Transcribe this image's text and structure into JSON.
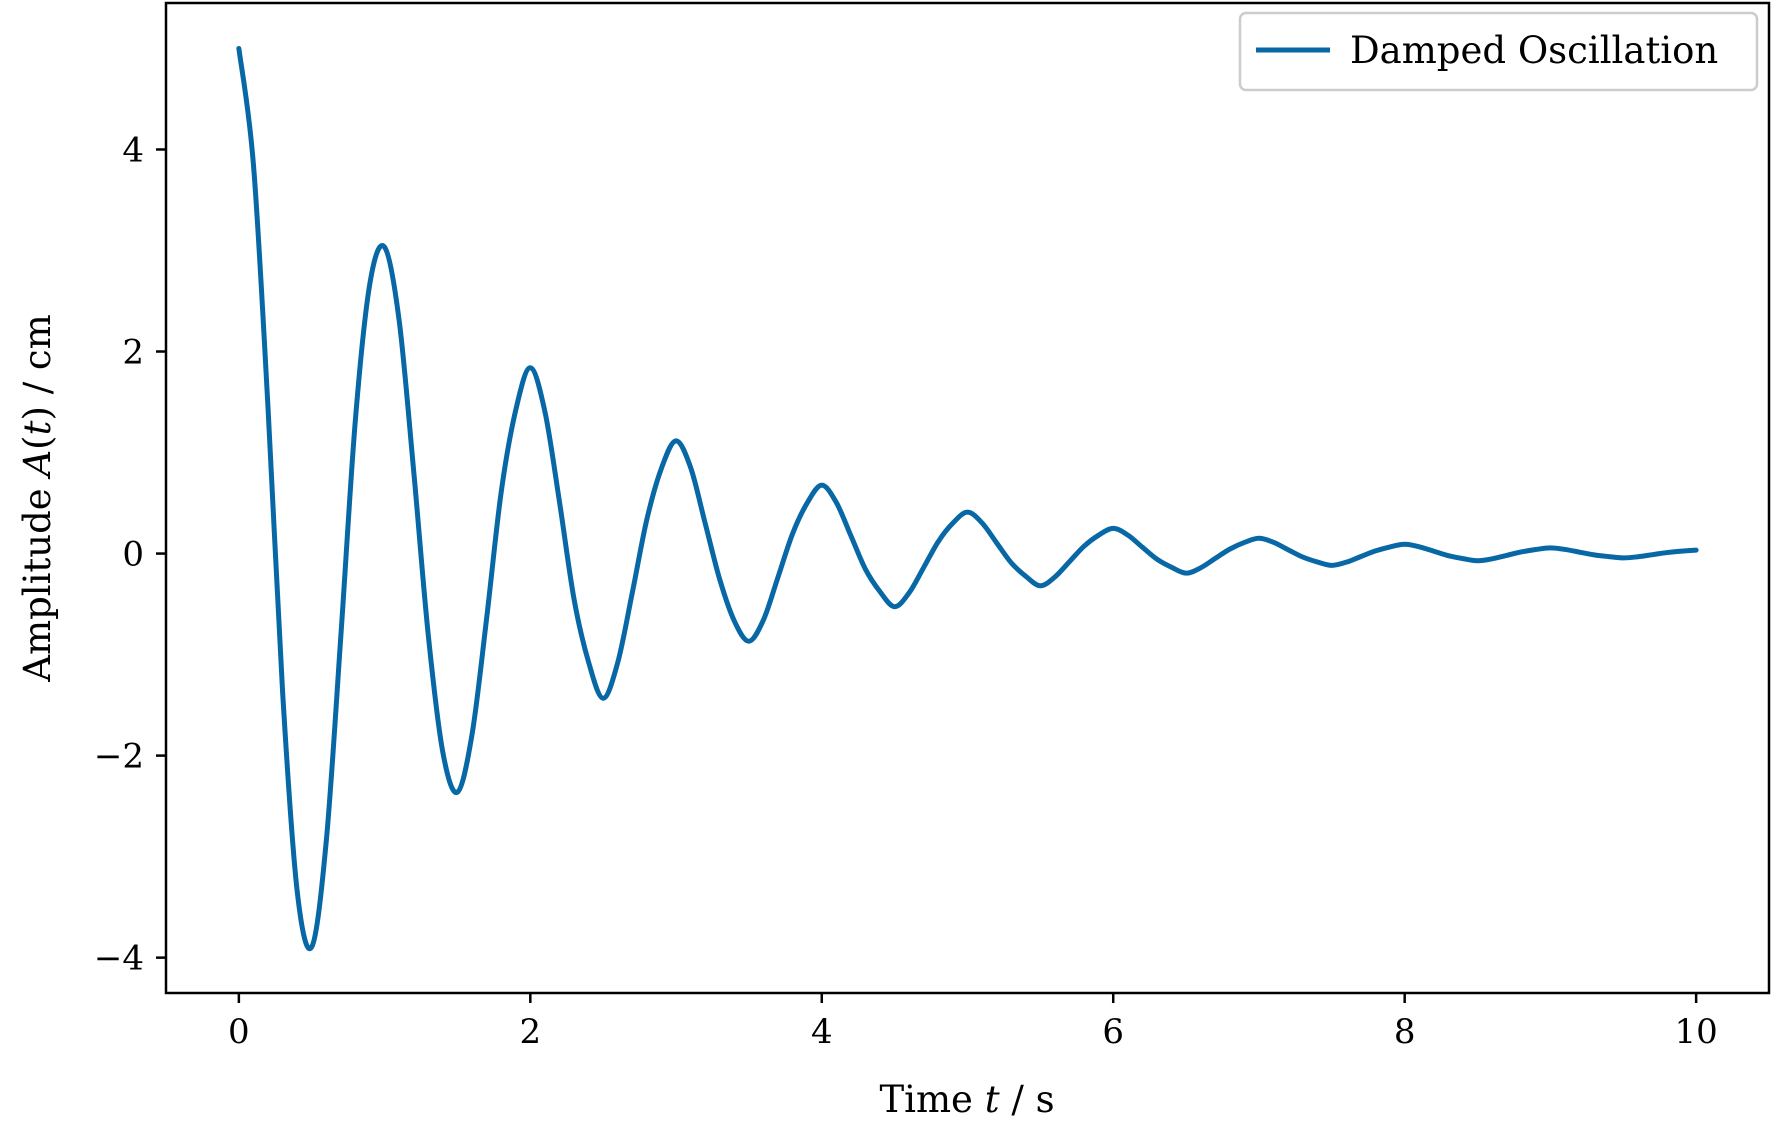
{
  "chart_data": {
    "type": "line",
    "title": "",
    "xlabel": {
      "prefix": "Time ",
      "var": "t",
      "suffix": " / s"
    },
    "ylabel": {
      "prefix": "Amplitude ",
      "var": "A",
      "paren_open": "(",
      "paren_var": "t",
      "paren_close": ")",
      "suffix": " / cm"
    },
    "xlim": [
      -0.5,
      10.5
    ],
    "ylim": [
      -4.35,
      5.45
    ],
    "xticks": [
      0,
      2,
      4,
      6,
      8,
      10
    ],
    "yticks": [
      -4,
      -2,
      0,
      2,
      4
    ],
    "xtick_labels": [
      "0",
      "2",
      "4",
      "6",
      "8",
      "10"
    ],
    "ytick_labels": [
      "−4",
      "−2",
      "0",
      "2",
      "4"
    ],
    "grid": false,
    "legend_position": "top-right",
    "series": [
      {
        "name": "Damped Oscillation",
        "color": "#0868a6",
        "x": [
          0.0,
          0.1,
          0.2,
          0.3,
          0.4,
          0.5,
          0.6,
          0.7,
          0.8,
          0.9,
          1.0,
          1.1,
          1.2,
          1.3,
          1.4,
          1.5,
          1.6,
          1.7,
          1.8,
          1.9,
          2.0,
          2.1,
          2.2,
          2.3,
          2.4,
          2.5,
          2.6,
          2.7,
          2.8,
          2.9,
          3.0,
          3.1,
          3.2,
          3.3,
          3.4,
          3.5,
          3.6,
          3.7,
          3.8,
          3.9,
          4.0,
          4.1,
          4.2,
          4.3,
          4.4,
          4.5,
          4.6,
          4.7,
          4.8,
          4.9,
          5.0,
          5.1,
          5.2,
          5.3,
          5.4,
          5.5,
          5.6,
          5.7,
          5.8,
          5.9,
          6.0,
          6.1,
          6.2,
          6.3,
          6.4,
          6.5,
          6.6,
          6.7,
          6.8,
          6.9,
          7.0,
          7.1,
          7.2,
          7.3,
          7.4,
          7.5,
          7.6,
          7.7,
          7.8,
          7.9,
          8.0,
          8.1,
          8.2,
          8.3,
          8.4,
          8.5,
          8.6,
          8.7,
          8.8,
          8.9,
          9.0,
          9.1,
          9.2,
          9.3,
          9.4,
          9.5,
          9.6,
          9.7,
          9.8,
          9.9,
          10.0
        ],
        "y": [
          5.0,
          3.85,
          1.445,
          -1.366,
          -3.339,
          -3.894,
          -2.843,
          -0.813,
          1.331,
          2.682,
          3.033,
          2.306,
          0.811,
          -0.81,
          -1.97,
          -2.362,
          -1.791,
          -0.643,
          0.607,
          1.42,
          1.839,
          1.406,
          0.513,
          -0.451,
          -1.075,
          -1.432,
          -1.078,
          -0.386,
          0.34,
          0.845,
          1.116,
          0.852,
          0.299,
          -0.257,
          -0.668,
          -0.868,
          -0.656,
          -0.232,
          0.198,
          0.501,
          0.677,
          0.505,
          0.176,
          -0.156,
          -0.378,
          -0.526,
          -0.387,
          -0.136,
          0.12,
          0.302,
          0.41,
          0.303,
          0.106,
          -0.091,
          -0.225,
          -0.319,
          -0.231,
          -0.08,
          0.073,
          0.182,
          0.249,
          0.183,
          0.063,
          -0.056,
          -0.136,
          -0.194,
          -0.141,
          -0.048,
          0.044,
          0.11,
          0.151,
          0.111,
          0.038,
          -0.034,
          -0.083,
          -0.117,
          -0.085,
          -0.029,
          0.026,
          0.066,
          0.092,
          0.067,
          0.023,
          -0.021,
          -0.05,
          -0.071,
          -0.052,
          -0.018,
          0.016,
          0.04,
          0.056,
          0.041,
          0.014,
          -0.013,
          -0.03,
          -0.043,
          -0.032,
          -0.011,
          0.01,
          0.024,
          0.034
        ]
      }
    ]
  }
}
